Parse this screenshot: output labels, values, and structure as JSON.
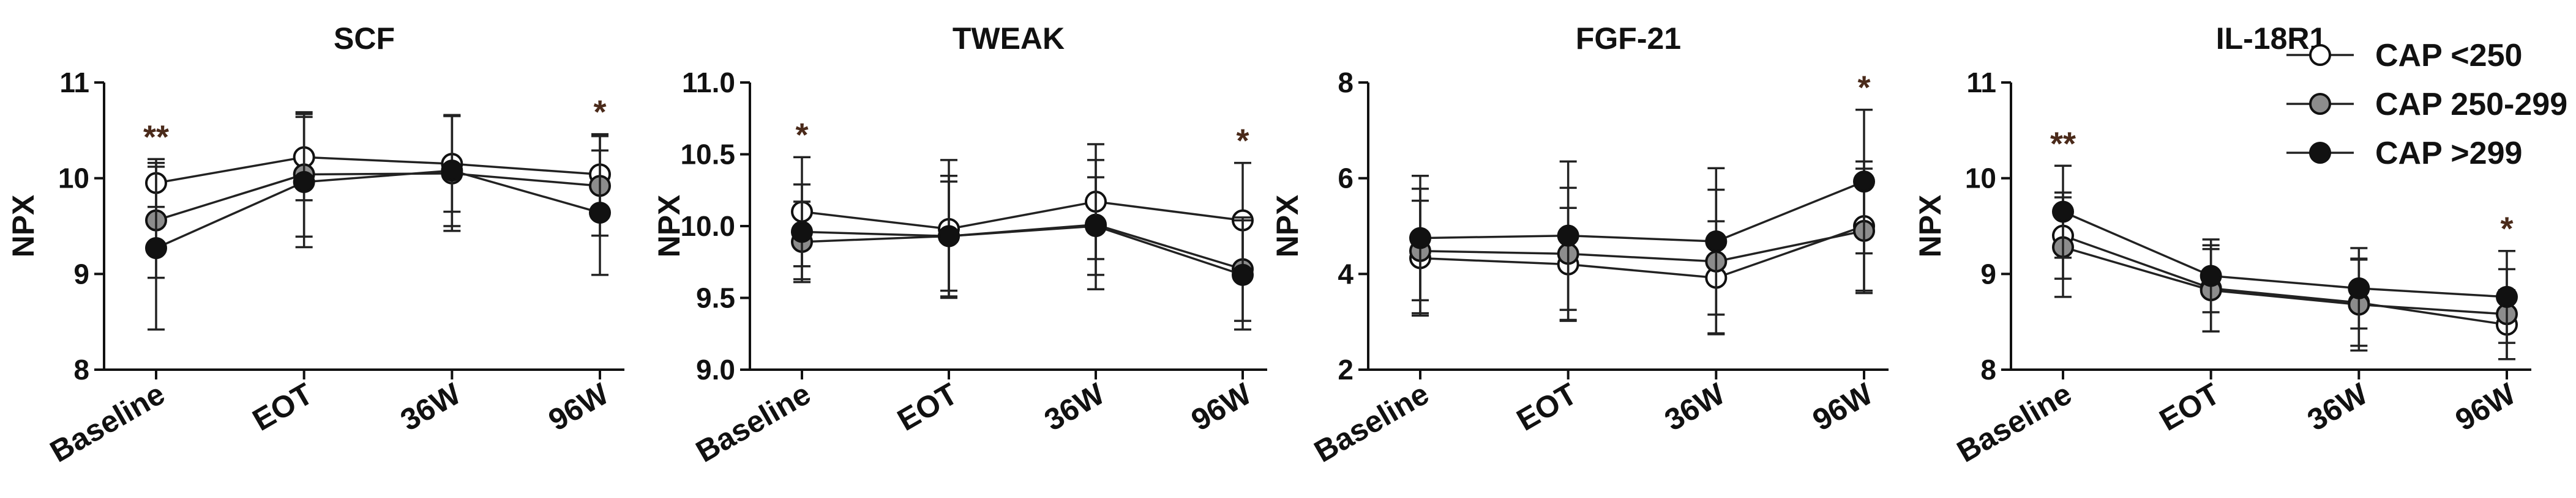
{
  "legend": {
    "entries": [
      {
        "label": "CAP <250",
        "color": "#ffffff"
      },
      {
        "label": "CAP 250-299",
        "color": "#8c8c8c"
      },
      {
        "label": "CAP >299",
        "color": "#111111"
      }
    ]
  },
  "chart_data": [
    {
      "type": "line",
      "title": "SCF",
      "ylabel": "NPX",
      "xlabel": "",
      "categories": [
        "Baseline",
        "EOT",
        "36W",
        "96W"
      ],
      "ylim": [
        8,
        11
      ],
      "yticks": [
        8,
        9,
        10,
        11
      ],
      "ytick_labels": [
        "8",
        "9",
        "10",
        "11"
      ],
      "series": [
        {
          "name": "CAP <250",
          "color": "#ffffff",
          "values": [
            9.95,
            10.22,
            10.15,
            10.04
          ],
          "errors": [
            0.25,
            0.45,
            0.5,
            0.42
          ]
        },
        {
          "name": "CAP 250-299",
          "color": "#8c8c8c",
          "values": [
            9.56,
            10.04,
            10.05,
            9.92
          ],
          "errors": [
            0.6,
            0.65,
            0.6,
            0.52
          ]
        },
        {
          "name": "CAP >299",
          "color": "#111111",
          "values": [
            9.27,
            9.96,
            10.08,
            9.64
          ],
          "errors": [
            0.85,
            0.68,
            0.58,
            0.65
          ]
        }
      ],
      "significance": [
        {
          "category": "Baseline",
          "label": "**"
        },
        {
          "category": "96W",
          "label": "*"
        }
      ]
    },
    {
      "type": "line",
      "title": "TWEAK",
      "ylabel": "NPX",
      "xlabel": "",
      "categories": [
        "Baseline",
        "EOT",
        "36W",
        "96W"
      ],
      "ylim": [
        9.0,
        11.0
      ],
      "yticks": [
        9.0,
        9.5,
        10.0,
        10.5,
        11.0
      ],
      "ytick_labels": [
        "9.0",
        "9.5",
        "10.0",
        "10.5",
        "11.0"
      ],
      "series": [
        {
          "name": "CAP <250",
          "color": "#ffffff",
          "values": [
            10.1,
            9.98,
            10.17,
            10.04
          ],
          "errors": [
            0.38,
            0.48,
            0.4,
            0.4
          ]
        },
        {
          "name": "CAP 250-299",
          "color": "#8c8c8c",
          "values": [
            9.89,
            9.93,
            10.01,
            9.7
          ],
          "errors": [
            0.28,
            0.38,
            0.45,
            0.36
          ]
        },
        {
          "name": "CAP >299",
          "color": "#111111",
          "values": [
            9.96,
            9.93,
            10.0,
            9.66
          ],
          "errors": [
            0.33,
            0.42,
            0.34,
            0.38
          ]
        }
      ],
      "significance": [
        {
          "category": "Baseline",
          "label": "*"
        },
        {
          "category": "96W",
          "label": "*"
        }
      ]
    },
    {
      "type": "line",
      "title": "FGF-21",
      "ylabel": "NPX",
      "xlabel": "",
      "categories": [
        "Baseline",
        "EOT",
        "36W",
        "96W"
      ],
      "ylim": [
        2,
        8
      ],
      "yticks": [
        2,
        4,
        6,
        8
      ],
      "ytick_labels": [
        "2",
        "4",
        "6",
        "8"
      ],
      "series": [
        {
          "name": "CAP <250",
          "color": "#ffffff",
          "values": [
            4.33,
            4.2,
            3.92,
            5.0
          ],
          "errors": [
            1.2,
            1.18,
            1.18,
            1.35
          ]
        },
        {
          "name": "CAP 250-299",
          "color": "#8c8c8c",
          "values": [
            4.48,
            4.42,
            4.26,
            4.9
          ],
          "errors": [
            1.3,
            1.38,
            1.5,
            1.3
          ]
        },
        {
          "name": "CAP >299",
          "color": "#111111",
          "values": [
            4.75,
            4.8,
            4.68,
            5.93
          ],
          "errors": [
            1.3,
            1.55,
            1.53,
            1.5
          ]
        }
      ],
      "significance": [
        {
          "category": "96W",
          "label": "*"
        }
      ]
    },
    {
      "type": "line",
      "title": "IL-18R1",
      "ylabel": "NPX",
      "xlabel": "",
      "categories": [
        "Baseline",
        "EOT",
        "36W",
        "96W"
      ],
      "ylim": [
        8,
        11
      ],
      "yticks": [
        8,
        9,
        10,
        11
      ],
      "ytick_labels": [
        "8",
        "9",
        "10",
        "11"
      ],
      "series": [
        {
          "name": "CAP <250",
          "color": "#ffffff",
          "values": [
            9.4,
            8.85,
            8.7,
            8.47
          ],
          "errors": [
            0.45,
            0.45,
            0.45,
            0.36
          ]
        },
        {
          "name": "CAP 250-299",
          "color": "#8c8c8c",
          "values": [
            9.28,
            8.83,
            8.68,
            8.58
          ],
          "errors": [
            0.52,
            0.43,
            0.48,
            0.47
          ]
        },
        {
          "name": "CAP >299",
          "color": "#111111",
          "values": [
            9.65,
            8.98,
            8.85,
            8.76
          ],
          "errors": [
            0.48,
            0.38,
            0.42,
            0.48
          ]
        }
      ],
      "significance": [
        {
          "category": "Baseline",
          "label": "**"
        },
        {
          "category": "96W",
          "label": "*"
        }
      ]
    }
  ]
}
